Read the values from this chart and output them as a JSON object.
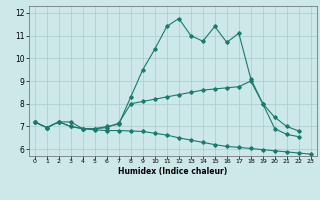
{
  "xlabel": "Humidex (Indice chaleur)",
  "xlim": [
    -0.5,
    23.5
  ],
  "ylim": [
    5.7,
    12.3
  ],
  "yticks": [
    6,
    7,
    8,
    9,
    10,
    11,
    12
  ],
  "xticks": [
    0,
    1,
    2,
    3,
    4,
    5,
    6,
    7,
    8,
    9,
    10,
    11,
    12,
    13,
    14,
    15,
    16,
    17,
    18,
    19,
    20,
    21,
    22,
    23
  ],
  "bg_color": "#cce8e8",
  "grid_color": "#aacccc",
  "line_color": "#1a7a6e",
  "series": {
    "top": {
      "x": [
        0,
        1,
        2,
        3,
        4,
        5,
        6,
        7,
        8,
        9,
        10,
        11,
        12,
        13,
        14,
        15,
        16,
        17,
        18,
        19,
        20,
        21,
        22
      ],
      "y": [
        7.2,
        6.95,
        7.2,
        7.2,
        6.9,
        6.9,
        7.0,
        7.1,
        8.3,
        9.5,
        10.4,
        11.4,
        11.75,
        11.0,
        10.75,
        11.4,
        10.7,
        11.1,
        9.1,
        8.0,
        6.9,
        6.65,
        6.55
      ]
    },
    "mid": {
      "x": [
        0,
        1,
        2,
        3,
        4,
        5,
        6,
        7,
        8,
        9,
        10,
        11,
        12,
        13,
        14,
        15,
        16,
        17,
        18,
        19,
        20,
        21,
        22
      ],
      "y": [
        7.2,
        6.95,
        7.2,
        7.0,
        6.9,
        6.9,
        6.95,
        7.15,
        8.0,
        8.1,
        8.2,
        8.3,
        8.4,
        8.5,
        8.6,
        8.65,
        8.7,
        8.75,
        9.0,
        8.0,
        7.4,
        7.0,
        6.8
      ]
    },
    "bot": {
      "x": [
        0,
        1,
        2,
        3,
        4,
        5,
        6,
        7,
        8,
        9,
        10,
        11,
        12,
        13,
        14,
        15,
        16,
        17,
        18,
        19,
        20,
        21,
        22,
        23
      ],
      "y": [
        7.2,
        6.95,
        7.2,
        7.0,
        6.9,
        6.85,
        6.82,
        6.82,
        6.8,
        6.78,
        6.7,
        6.62,
        6.5,
        6.4,
        6.3,
        6.2,
        6.12,
        6.08,
        6.03,
        5.98,
        5.93,
        5.88,
        5.83,
        5.78
      ]
    }
  }
}
